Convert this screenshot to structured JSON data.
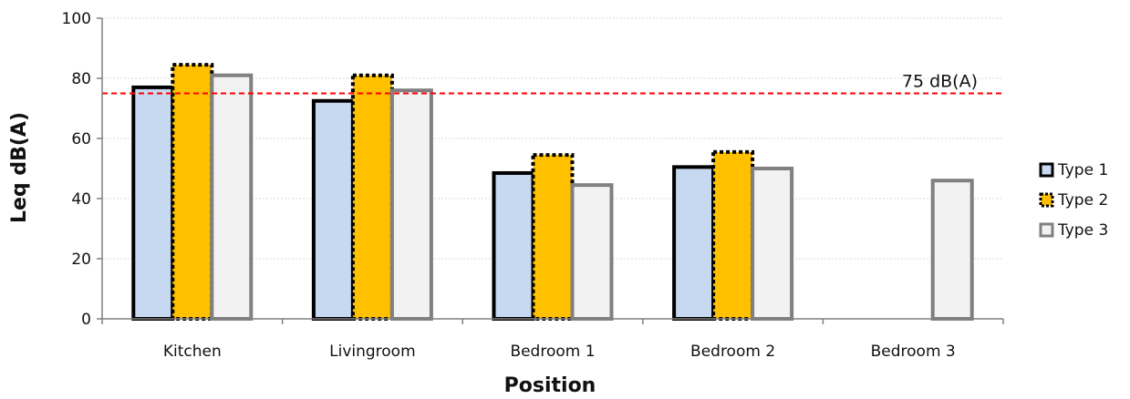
{
  "chart_data": {
    "type": "bar",
    "categories": [
      "Kitchen",
      "Livingroom",
      "Bedroom 1",
      "Bedroom 2",
      "Bedroom 3"
    ],
    "series": [
      {
        "name": "Type 1",
        "values": [
          77,
          72.5,
          48.5,
          50.5,
          null
        ],
        "fill": "#c6d9f1",
        "stroke": "#000000",
        "dash": ""
      },
      {
        "name": "Type 2",
        "values": [
          84.5,
          81,
          54.5,
          55.5,
          null
        ],
        "fill": "#ffc000",
        "stroke": "#000000",
        "dash": "4,3"
      },
      {
        "name": "Type 3",
        "values": [
          81,
          76,
          44.5,
          50,
          46
        ],
        "fill": "#f2f2f2",
        "stroke": "#808080",
        "dash": ""
      }
    ],
    "xlabel": "Position",
    "ylabel": "Leq dB(A)",
    "ylim": [
      0,
      100
    ],
    "yticks": [
      0,
      20,
      40,
      60,
      80,
      100
    ],
    "grid": true,
    "legend_position": "right",
    "reference_line": {
      "value": 75,
      "label": "75 dB(A)",
      "color": "#ff0000"
    }
  }
}
